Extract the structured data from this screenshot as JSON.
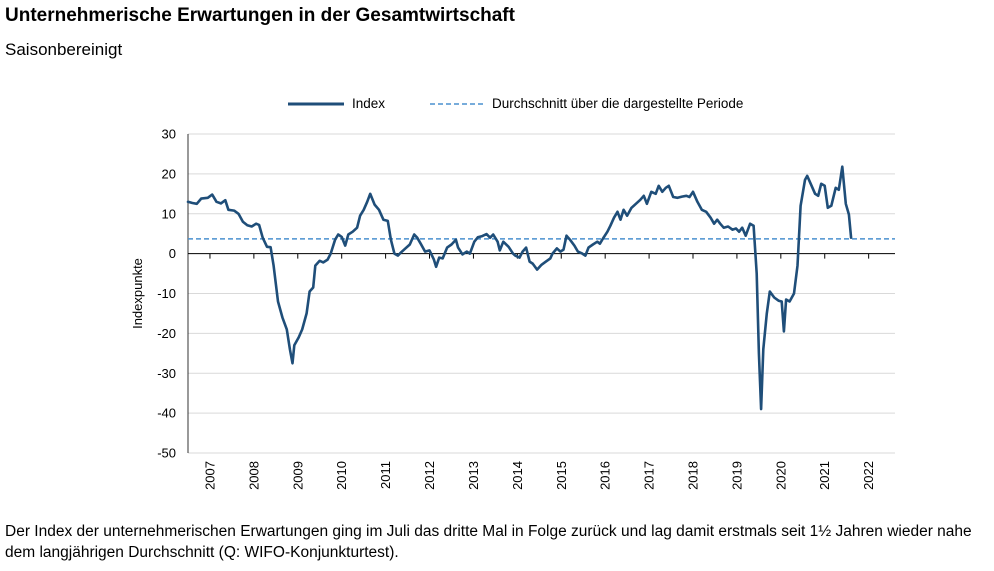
{
  "title": "Unternehmerische Erwartungen in der Gesamtwirtschaft",
  "subtitle": "Saisonbereinigt",
  "caption": "Der Index der unternehmerischen Erwartungen ging im Juli das dritte Mal in Folge zurück und lag damit erstmals seit 1½ Jahren wieder nahe dem langjährigen Durchschnitt (Q: WIFO-Konjunkturtest).",
  "colors": {
    "index": "#1f4e79",
    "average": "#4a90cf",
    "grid": "#d9d9d9"
  },
  "chart_data": {
    "type": "line",
    "ylabel": "Indexpunkte",
    "ylim": [
      -50,
      30
    ],
    "yticks": [
      30,
      20,
      10,
      0,
      -10,
      -20,
      -30,
      -40,
      -50
    ],
    "xlim": [
      2006.5,
      2022.6
    ],
    "xticks": [
      "2007",
      "2008",
      "2009",
      "2010",
      "2011",
      "2012",
      "2013",
      "2014",
      "2015",
      "2016",
      "2017",
      "2018",
      "2019",
      "2020",
      "2021",
      "2022"
    ],
    "legend_position": "top",
    "average": {
      "name": "Durchschnitt über die dargestellte Periode",
      "value": 3.7
    },
    "series": [
      {
        "name": "Index",
        "points": [
          [
            2006.5,
            13
          ],
          [
            2006.6,
            12.7
          ],
          [
            2006.7,
            12.5
          ],
          [
            2006.8,
            13.8
          ],
          [
            2006.95,
            14
          ],
          [
            2007.05,
            14.8
          ],
          [
            2007.15,
            13
          ],
          [
            2007.25,
            12.6
          ],
          [
            2007.35,
            13.4
          ],
          [
            2007.42,
            11
          ],
          [
            2007.55,
            10.8
          ],
          [
            2007.65,
            10
          ],
          [
            2007.75,
            8
          ],
          [
            2007.85,
            7.1
          ],
          [
            2007.95,
            6.8
          ],
          [
            2008.05,
            7.5
          ],
          [
            2008.12,
            7.2
          ],
          [
            2008.2,
            4
          ],
          [
            2008.3,
            1.7
          ],
          [
            2008.38,
            1.6
          ],
          [
            2008.45,
            -3
          ],
          [
            2008.55,
            -12
          ],
          [
            2008.65,
            -16
          ],
          [
            2008.75,
            -19
          ],
          [
            2008.82,
            -24
          ],
          [
            2008.88,
            -27.5
          ],
          [
            2008.92,
            -23
          ],
          [
            2009.02,
            -21
          ],
          [
            2009.1,
            -19
          ],
          [
            2009.2,
            -15
          ],
          [
            2009.27,
            -9.5
          ],
          [
            2009.35,
            -8.5
          ],
          [
            2009.4,
            -3
          ],
          [
            2009.5,
            -1.8
          ],
          [
            2009.58,
            -2.2
          ],
          [
            2009.68,
            -1.5
          ],
          [
            2009.75,
            0
          ],
          [
            2009.85,
            3.5
          ],
          [
            2009.92,
            4.8
          ],
          [
            2010.0,
            4.2
          ],
          [
            2010.08,
            2
          ],
          [
            2010.15,
            4.8
          ],
          [
            2010.25,
            5.5
          ],
          [
            2010.35,
            6.5
          ],
          [
            2010.42,
            9.5
          ],
          [
            2010.5,
            11
          ],
          [
            2010.58,
            13
          ],
          [
            2010.65,
            15
          ],
          [
            2010.75,
            12.3
          ],
          [
            2010.85,
            11
          ],
          [
            2010.95,
            8.5
          ],
          [
            2011.05,
            8.2
          ],
          [
            2011.12,
            3.5
          ],
          [
            2011.2,
            0
          ],
          [
            2011.28,
            -0.5
          ],
          [
            2011.35,
            0.3
          ],
          [
            2011.45,
            1.3
          ],
          [
            2011.55,
            2.3
          ],
          [
            2011.65,
            4.8
          ],
          [
            2011.72,
            4
          ],
          [
            2011.8,
            2.5
          ],
          [
            2011.9,
            0.5
          ],
          [
            2012.0,
            0.8
          ],
          [
            2012.1,
            -1.5
          ],
          [
            2012.15,
            -3.3
          ],
          [
            2012.22,
            -1
          ],
          [
            2012.3,
            -1.2
          ],
          [
            2012.4,
            1.5
          ],
          [
            2012.5,
            2.3
          ],
          [
            2012.6,
            3.5
          ],
          [
            2012.65,
            1.5
          ],
          [
            2012.75,
            -0.2
          ],
          [
            2012.85,
            0.5
          ],
          [
            2012.92,
            0
          ],
          [
            2013.02,
            3
          ],
          [
            2013.1,
            4.1
          ],
          [
            2013.2,
            4.4
          ],
          [
            2013.3,
            4.9
          ],
          [
            2013.38,
            4
          ],
          [
            2013.45,
            4.8
          ],
          [
            2013.55,
            3
          ],
          [
            2013.6,
            0.8
          ],
          [
            2013.68,
            3
          ],
          [
            2013.8,
            1.7
          ],
          [
            2013.9,
            0
          ],
          [
            2013.95,
            -0.5
          ],
          [
            2014.05,
            -1
          ],
          [
            2014.12,
            0.5
          ],
          [
            2014.2,
            1.5
          ],
          [
            2014.28,
            -2
          ],
          [
            2014.35,
            -2.5
          ],
          [
            2014.45,
            -4
          ],
          [
            2014.55,
            -2.8
          ],
          [
            2014.65,
            -2
          ],
          [
            2014.75,
            -1.2
          ],
          [
            2014.8,
            0
          ],
          [
            2014.9,
            1.3
          ],
          [
            2014.98,
            0.5
          ],
          [
            2015.05,
            1
          ],
          [
            2015.12,
            4.5
          ],
          [
            2015.2,
            3.5
          ],
          [
            2015.3,
            2
          ],
          [
            2015.38,
            0.5
          ],
          [
            2015.48,
            0
          ],
          [
            2015.55,
            -0.5
          ],
          [
            2015.62,
            1.5
          ],
          [
            2015.72,
            2.3
          ],
          [
            2015.82,
            3
          ],
          [
            2015.88,
            2.5
          ],
          [
            2015.95,
            3.8
          ],
          [
            2016.05,
            5.5
          ],
          [
            2016.12,
            7
          ],
          [
            2016.2,
            9
          ],
          [
            2016.28,
            10.5
          ],
          [
            2016.35,
            8.5
          ],
          [
            2016.42,
            11
          ],
          [
            2016.5,
            9.5
          ],
          [
            2016.6,
            11.5
          ],
          [
            2016.7,
            12.5
          ],
          [
            2016.8,
            13.5
          ],
          [
            2016.88,
            14.5
          ],
          [
            2016.95,
            12.5
          ],
          [
            2017.05,
            15.5
          ],
          [
            2017.15,
            15
          ],
          [
            2017.22,
            17
          ],
          [
            2017.3,
            15.5
          ],
          [
            2017.38,
            16.5
          ],
          [
            2017.45,
            17
          ],
          [
            2017.55,
            14.2
          ],
          [
            2017.65,
            14
          ],
          [
            2017.75,
            14.3
          ],
          [
            2017.85,
            14.5
          ],
          [
            2017.92,
            14.2
          ],
          [
            2018.0,
            15.5
          ],
          [
            2018.1,
            13
          ],
          [
            2018.2,
            11
          ],
          [
            2018.3,
            10.5
          ],
          [
            2018.4,
            9
          ],
          [
            2018.48,
            7.5
          ],
          [
            2018.55,
            8.5
          ],
          [
            2018.62,
            7.5
          ],
          [
            2018.7,
            6.5
          ],
          [
            2018.8,
            6.8
          ],
          [
            2018.9,
            6
          ],
          [
            2018.98,
            6.3
          ],
          [
            2019.05,
            5.5
          ],
          [
            2019.12,
            6.5
          ],
          [
            2019.2,
            4.5
          ],
          [
            2019.3,
            7.5
          ],
          [
            2019.38,
            7
          ],
          [
            2019.45,
            -5
          ],
          [
            2019.5,
            -25
          ],
          [
            2019.55,
            -39
          ],
          [
            2019.6,
            -24
          ],
          [
            2019.68,
            -15
          ],
          [
            2019.75,
            -9.5
          ],
          [
            2019.85,
            -11
          ],
          [
            2019.95,
            -11.8
          ],
          [
            2020.02,
            -12
          ],
          [
            2020.07,
            -19.5
          ],
          [
            2020.12,
            -11.5
          ],
          [
            2020.2,
            -12
          ],
          [
            2020.3,
            -10
          ],
          [
            2020.38,
            -3
          ],
          [
            2020.45,
            12
          ],
          [
            2020.55,
            18.5
          ],
          [
            2020.6,
            19.5
          ],
          [
            2020.7,
            17
          ],
          [
            2020.78,
            15
          ],
          [
            2020.85,
            14.5
          ],
          [
            2020.92,
            17.5
          ],
          [
            2021.0,
            17
          ],
          [
            2021.07,
            11.5
          ],
          [
            2021.15,
            12
          ],
          [
            2021.25,
            16.5
          ],
          [
            2021.32,
            16
          ],
          [
            2021.4,
            21.8
          ],
          [
            2021.48,
            12.5
          ],
          [
            2021.55,
            9.8
          ],
          [
            2021.6,
            4
          ]
        ]
      }
    ]
  }
}
